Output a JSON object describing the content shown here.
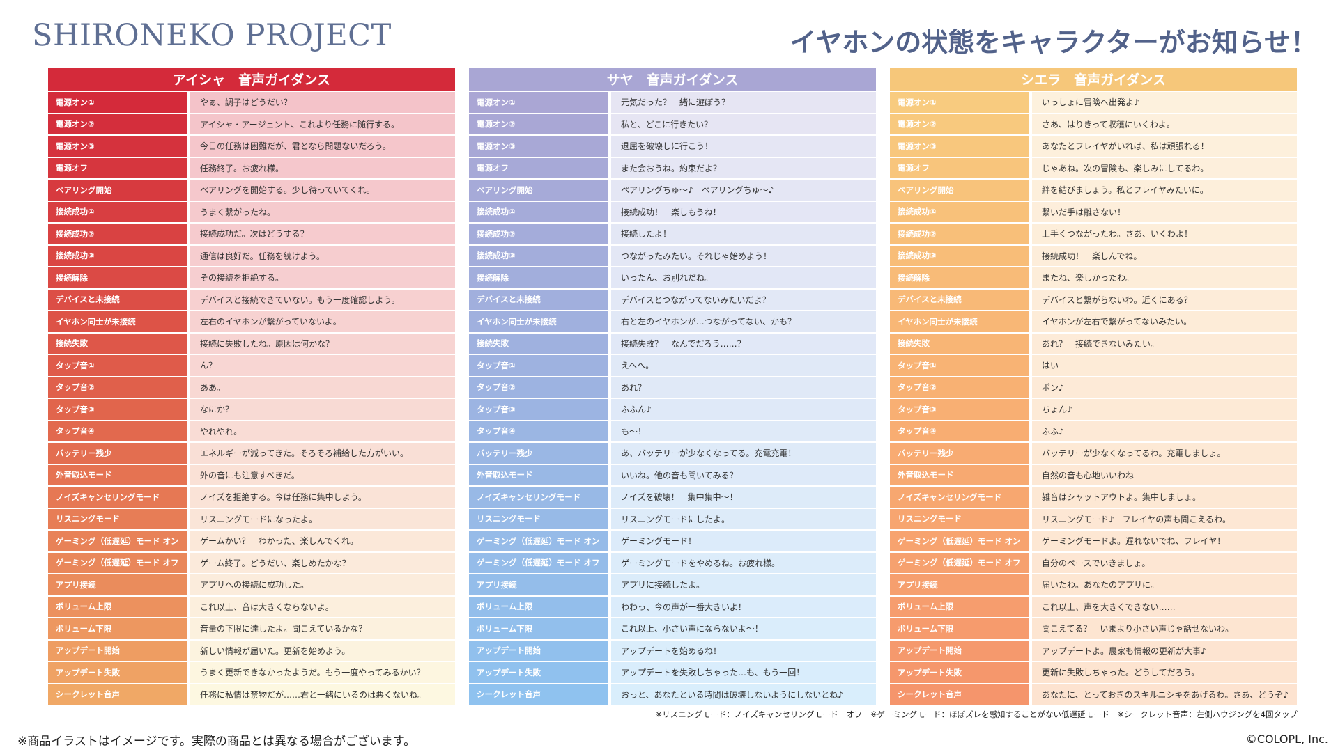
{
  "brand": "SHIRONEKO PROJECT",
  "headline": "イヤホンの状態をキャラクターがお知らせ！",
  "tables": [
    {
      "title": "アイシャ　音声ガイダンス",
      "header_color": "#d42a3a",
      "label_colors": [
        "#d42a3a",
        "#d42e3c",
        "#d5323d",
        "#d6363e",
        "#d73a3f",
        "#d83e41",
        "#d94242",
        "#da4643",
        "#db4a45",
        "#dc4e46",
        "#dd5347",
        "#de5749",
        "#df5b4a",
        "#e0604b",
        "#e1654c",
        "#e2694e",
        "#e36e50",
        "#e57352",
        "#e67854",
        "#e77d56",
        "#e88258",
        "#e9875a",
        "#ea8c5c",
        "#ec915e",
        "#ed9760",
        "#ee9d62",
        "#efa264",
        "#f0a866"
      ],
      "text_colors": [
        "#f4c3c9",
        "#f4c5ca",
        "#f5c6cb",
        "#f5c7cc",
        "#f5c8cc",
        "#f5cacd",
        "#f6cbce",
        "#f6cdcf",
        "#f6ced0",
        "#f7d0d0",
        "#f7d2d1",
        "#f7d4d2",
        "#f8d6d3",
        "#f8d8d3",
        "#f8dad4",
        "#f9dcd5",
        "#f9dfd6",
        "#fae1d6",
        "#fae3d7",
        "#fae5d8",
        "#fbe8d9",
        "#fbeadb",
        "#fbecdc",
        "#fcefdd",
        "#fcf1de",
        "#fcf3df",
        "#fdf6e0",
        "#fdf8e1"
      ],
      "rows": [
        {
          "label": "電源オン①",
          "text": "やぁ、調子はどうだい？"
        },
        {
          "label": "電源オン②",
          "text": "アイシャ・アージェント、これより任務に随行する。"
        },
        {
          "label": "電源オン③",
          "text": "今日の任務は困難だが、君となら問題ないだろう。"
        },
        {
          "label": "電源オフ",
          "text": "任務終了。お疲れ様。"
        },
        {
          "label": "ペアリング開始",
          "text": "ペアリングを開始する。少し待っていてくれ。"
        },
        {
          "label": "接続成功①",
          "text": "うまく繋がったね。"
        },
        {
          "label": "接続成功②",
          "text": "接続成功だ。次はどうする？"
        },
        {
          "label": "接続成功③",
          "text": "通信は良好だ。任務を続けよう。"
        },
        {
          "label": "接続解除",
          "text": "その接続を拒絶する。"
        },
        {
          "label": "デバイスと未接続",
          "text": "デバイスと接続できていない。もう一度確認しよう。"
        },
        {
          "label": "イヤホン同士が未接続",
          "text": "左右のイヤホンが繋がっていないよ。"
        },
        {
          "label": "接続失敗",
          "text": "接続に失敗したね。原因は何かな？"
        },
        {
          "label": "タップ音①",
          "text": "ん？"
        },
        {
          "label": "タップ音②",
          "text": "ああ。"
        },
        {
          "label": "タップ音③",
          "text": "なにか？"
        },
        {
          "label": "タップ音④",
          "text": "やれやれ。"
        },
        {
          "label": "バッテリー残少",
          "text": "エネルギーが減ってきた。そろそろ補給した方がいい。"
        },
        {
          "label": "外音取込モード",
          "text": "外の音にも注意すべきだ。"
        },
        {
          "label": "ノイズキャンセリングモード",
          "text": "ノイズを拒絶する。今は任務に集中しよう。"
        },
        {
          "label": "リスニングモード",
          "text": "リスニングモードになったよ。"
        },
        {
          "label": "ゲーミング（低遅延）モード オン",
          "text": "ゲームかい？　わかった、楽しんでくれ。"
        },
        {
          "label": "ゲーミング（低遅延）モード オフ",
          "text": "ゲーム終了。どうだい、楽しめたかな？"
        },
        {
          "label": "アプリ接続",
          "text": "アプリへの接続に成功した。"
        },
        {
          "label": "ボリューム上限",
          "text": "これ以上、音は大きくならないよ。"
        },
        {
          "label": "ボリューム下限",
          "text": "音量の下限に達したよ。聞こえているかな？"
        },
        {
          "label": "アップデート開始",
          "text": "新しい情報が届いた。更新を始めよう。"
        },
        {
          "label": "アップデート失敗",
          "text": "うまく更新できなかったようだ。もう一度やってみるかい？"
        },
        {
          "label": "シークレット音声",
          "text": "任務に私情は禁物だが……君と一緒にいるのは悪くないね。"
        }
      ]
    },
    {
      "title": "サヤ　音声ガイダンス",
      "header_color": "#a9a6d4",
      "label_colors": [
        "#aaa6d4",
        "#a9a7d5",
        "#a8a8d6",
        "#a7a9d7",
        "#a6aad8",
        "#a5abd9",
        "#a4acda",
        "#a3addb",
        "#a2aedc",
        "#a1afdd",
        "#a0b0de",
        "#9fb1df",
        "#9eb2e0",
        "#9db3e1",
        "#9cb4e2",
        "#9bb6e3",
        "#9ab7e4",
        "#99b8e5",
        "#98b9e6",
        "#97bae7",
        "#96bbe8",
        "#95bce9",
        "#94bdea",
        "#93beeb",
        "#92bfec",
        "#91c0ed",
        "#90c1ee",
        "#8fc2ef"
      ],
      "text_colors": [
        "#e6e5f3",
        "#e6e5f3",
        "#e5e6f4",
        "#e5e6f4",
        "#e4e6f4",
        "#e4e6f5",
        "#e3e7f5",
        "#e3e7f5",
        "#e2e7f6",
        "#e2e8f6",
        "#e1e8f6",
        "#e1e8f7",
        "#e0e9f7",
        "#e0e9f7",
        "#dfe9f8",
        "#dfeaf8",
        "#deeaf8",
        "#deeaf9",
        "#ddebf9",
        "#ddebf9",
        "#dcebfa",
        "#dcecfa",
        "#dbecfa",
        "#dbecfb",
        "#daedfb",
        "#daedfb",
        "#d9edfc",
        "#d9eefc"
      ],
      "rows": [
        {
          "label": "電源オン①",
          "text": "元気だった？一緒に遊ぼう？"
        },
        {
          "label": "電源オン②",
          "text": "私と、どこに行きたい？"
        },
        {
          "label": "電源オン③",
          "text": "退屈を破壊しに行こう！"
        },
        {
          "label": "電源オフ",
          "text": "また会おうね。約束だよ？"
        },
        {
          "label": "ペアリング開始",
          "text": "ペアリングちゅ～♪　ペアリングちゅ～♪"
        },
        {
          "label": "接続成功①",
          "text": "接続成功！　楽しもうね！"
        },
        {
          "label": "接続成功②",
          "text": "接続したよ！"
        },
        {
          "label": "接続成功③",
          "text": "つながったみたい。それじゃ始めよう！"
        },
        {
          "label": "接続解除",
          "text": "いったん、お別れだね。"
        },
        {
          "label": "デバイスと未接続",
          "text": "デバイスとつながってないみたいだよ？"
        },
        {
          "label": "イヤホン同士が未接続",
          "text": "右と左のイヤホンが…つながってない、かも？"
        },
        {
          "label": "接続失敗",
          "text": "接続失敗？　なんでだろう……？"
        },
        {
          "label": "タップ音①",
          "text": "えへへ。"
        },
        {
          "label": "タップ音②",
          "text": "あれ？"
        },
        {
          "label": "タップ音③",
          "text": "ふふん♪"
        },
        {
          "label": "タップ音④",
          "text": "も～！"
        },
        {
          "label": "バッテリー残少",
          "text": "あ、バッテリーが少なくなってる。充電充電！"
        },
        {
          "label": "外音取込モード",
          "text": "いいね。他の音も聞いてみる？"
        },
        {
          "label": "ノイズキャンセリングモード",
          "text": "ノイズを破壊！　集中集中～！"
        },
        {
          "label": "リスニングモード",
          "text": "リスニングモードにしたよ。"
        },
        {
          "label": "ゲーミング（低遅延）モード オン",
          "text": "ゲーミングモード！"
        },
        {
          "label": "ゲーミング（低遅延）モード オフ",
          "text": "ゲーミングモードをやめるね。お疲れ様。"
        },
        {
          "label": "アプリ接続",
          "text": "アプリに接続したよ。"
        },
        {
          "label": "ボリューム上限",
          "text": "わわっ、今の声が一番大きいよ！"
        },
        {
          "label": "ボリューム下限",
          "text": "これ以上、小さい声にならないよ～！"
        },
        {
          "label": "アップデート開始",
          "text": "アップデートを始めるね！"
        },
        {
          "label": "アップデート失敗",
          "text": "アップデートを失敗しちゃった…も、もう一回！"
        },
        {
          "label": "シークレット音声",
          "text": "おっと、あなたといる時間は破壊しないようにしないとね♪"
        }
      ]
    },
    {
      "title": "シエラ　音声ガイダンス",
      "header_color": "#f6c77a",
      "label_colors": [
        "#f8cb7f",
        "#f8c97e",
        "#f8c77d",
        "#f8c57c",
        "#f8c37b",
        "#f8c17a",
        "#f8bf79",
        "#f8bd78",
        "#f8bb78",
        "#f8b977",
        "#f8b776",
        "#f8b575",
        "#f8b374",
        "#f8b173",
        "#f8af73",
        "#f8ad72",
        "#f8ab72",
        "#f7a971",
        "#f7a770",
        "#f7a570",
        "#f7a36f",
        "#f6a16f",
        "#f69f6e",
        "#f69d6e",
        "#f69b6d",
        "#f5996d",
        "#f5976c",
        "#f5956c"
      ],
      "text_colors": [
        "#fdf1dd",
        "#fdf0dd",
        "#fdf0dc",
        "#fdefdc",
        "#fdefdb",
        "#fdeedb",
        "#fdeeda",
        "#fdedda",
        "#fdedd9",
        "#fdecd9",
        "#fdecd8",
        "#fdebd8",
        "#fdebd7",
        "#fdead7",
        "#fdead6",
        "#fde9d6",
        "#fde9d5",
        "#fde8d5",
        "#fde8d4",
        "#fde7d4",
        "#fde7d3",
        "#fde6d3",
        "#fde6d2",
        "#fde5d2",
        "#fde5d1",
        "#fde4d1",
        "#fde4d0",
        "#fde3d0"
      ],
      "rows": [
        {
          "label": "電源オン①",
          "text": "いっしょに冒険へ出発よ♪"
        },
        {
          "label": "電源オン②",
          "text": "さあ、はりきって収穫にいくわよ。"
        },
        {
          "label": "電源オン③",
          "text": "あなたとフレイヤがいれば、私は頑張れる！"
        },
        {
          "label": "電源オフ",
          "text": "じゃあね。次の冒険も、楽しみにしてるわ。"
        },
        {
          "label": "ペアリング開始",
          "text": "絆を結びましょう。私とフレイヤみたいに。"
        },
        {
          "label": "接続成功①",
          "text": "繋いだ手は離さない！"
        },
        {
          "label": "接続成功②",
          "text": "上手くつながったわ。さあ、いくわよ！"
        },
        {
          "label": "接続成功③",
          "text": "接続成功！　楽しんでね。"
        },
        {
          "label": "接続解除",
          "text": "またね、楽しかったわ。"
        },
        {
          "label": "デバイスと未接続",
          "text": "デバイスと繋がらないわ。近くにある？"
        },
        {
          "label": "イヤホン同士が未接続",
          "text": "イヤホンが左右で繋がってないみたい。"
        },
        {
          "label": "接続失敗",
          "text": "あれ？　接続できないみたい。"
        },
        {
          "label": "タップ音①",
          "text": "はい"
        },
        {
          "label": "タップ音②",
          "text": "ポン♪"
        },
        {
          "label": "タップ音③",
          "text": "ちょん♪"
        },
        {
          "label": "タップ音④",
          "text": "ふふ♪"
        },
        {
          "label": "バッテリー残少",
          "text": "バッテリーが少なくなってるわ。充電しましょ。"
        },
        {
          "label": "外音取込モード",
          "text": "自然の音も心地いいわね"
        },
        {
          "label": "ノイズキャンセリングモード",
          "text": "雑音はシャットアウトよ。集中しましょ。"
        },
        {
          "label": "リスニングモード",
          "text": "リスニングモード♪　フレイヤの声も聞こえるわ。"
        },
        {
          "label": "ゲーミング（低遅延）モード オン",
          "text": "ゲーミングモードよ。遅れないでね、フレイヤ！"
        },
        {
          "label": "ゲーミング（低遅延）モード オフ",
          "text": "自分のペースでいきましょ。"
        },
        {
          "label": "アプリ接続",
          "text": "届いたわ。あなたのアプリに。"
        },
        {
          "label": "ボリューム上限",
          "text": "これ以上、声を大きくできない……"
        },
        {
          "label": "ボリューム下限",
          "text": "聞こえてる？　いまより小さい声じゃ話せないわ。"
        },
        {
          "label": "アップデート開始",
          "text": "アップデートよ。農家も情報の更新が大事♪"
        },
        {
          "label": "アップデート失敗",
          "text": "更新に失敗しちゃった。どうしてだろう。"
        },
        {
          "label": "シークレット音声",
          "text": "あなたに、とっておきのスキルニシキをあげるわ。さあ、どうぞ♪"
        }
      ]
    }
  ],
  "footnote_right": "※リスニングモード：ノイズキャンセリングモード　オフ　※ゲーミングモード：ほぼズレを感知することがない低遅延モード　※シークレット音声：左側ハウジングを4回タップ",
  "footnote_left": "※商品イラストはイメージです。実際の商品とは異なる場合がございます。",
  "copyright": "©COLOPL, Inc."
}
